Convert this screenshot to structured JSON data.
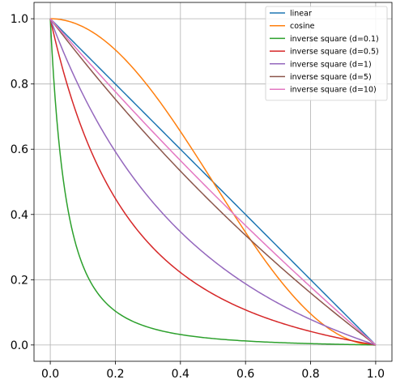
{
  "chart_data": {
    "type": "line",
    "title": "",
    "xlabel": "",
    "ylabel": "",
    "xlim": [
      -0.05,
      1.05
    ],
    "ylim": [
      -0.05,
      1.05
    ],
    "xticks": [
      0.0,
      0.2,
      0.4,
      0.6,
      0.8,
      1.0
    ],
    "yticks": [
      0.0,
      0.2,
      0.4,
      0.6,
      0.8,
      1.0
    ],
    "xtick_labels": [
      "0.0",
      "0.2",
      "0.4",
      "0.6",
      "0.8",
      "1.0"
    ],
    "ytick_labels": [
      "0.0",
      "0.2",
      "0.4",
      "0.6",
      "0.8",
      "1.0"
    ],
    "grid": true,
    "legend_position": "top-right",
    "x": [
      0.0,
      0.1,
      0.2,
      0.3,
      0.4,
      0.5,
      0.6,
      0.7,
      0.8,
      0.9,
      1.0
    ],
    "series": [
      {
        "name": "linear",
        "color": "#1f77b4",
        "values": [
          1.0,
          0.9,
          0.8,
          0.7,
          0.6,
          0.5,
          0.4,
          0.3,
          0.2,
          0.1,
          0.0
        ]
      },
      {
        "name": "cosine",
        "color": "#ff7f0e",
        "values": [
          1.0,
          0.976,
          0.905,
          0.794,
          0.655,
          0.5,
          0.345,
          0.206,
          0.095,
          0.024,
          0.0
        ]
      },
      {
        "name": "inverse square (d=0.1)",
        "color": "#2ca02c",
        "values": [
          1.0,
          0.24,
          0.1,
          0.054,
          0.031,
          0.018,
          0.011,
          0.006,
          0.003,
          0.001,
          0.0
        ]
      },
      {
        "name": "inverse square (d=0.5)",
        "color": "#d62728",
        "values": [
          1.0,
          0.64,
          0.44,
          0.316,
          0.229,
          0.165,
          0.117,
          0.08,
          0.049,
          0.023,
          0.0
        ]
      },
      {
        "name": "inverse square (d=1)",
        "color": "#9467bd",
        "values": [
          1.0,
          0.777,
          0.6,
          0.459,
          0.345,
          0.25,
          0.171,
          0.104,
          0.049,
          0.005,
          0.0
        ]
      },
      {
        "name": "inverse square (d=5)",
        "color": "#8c564b",
        "values": [
          1.0,
          0.882,
          0.771,
          0.666,
          0.566,
          0.472,
          0.382,
          0.297,
          0.216,
          0.139,
          0.0
        ]
      },
      {
        "name": "inverse square (d=10)",
        "color": "#e377c2",
        "values": [
          1.0,
          0.894,
          0.79,
          0.69,
          0.592,
          0.496,
          0.403,
          0.312,
          0.224,
          0.139,
          0.0
        ]
      }
    ]
  }
}
